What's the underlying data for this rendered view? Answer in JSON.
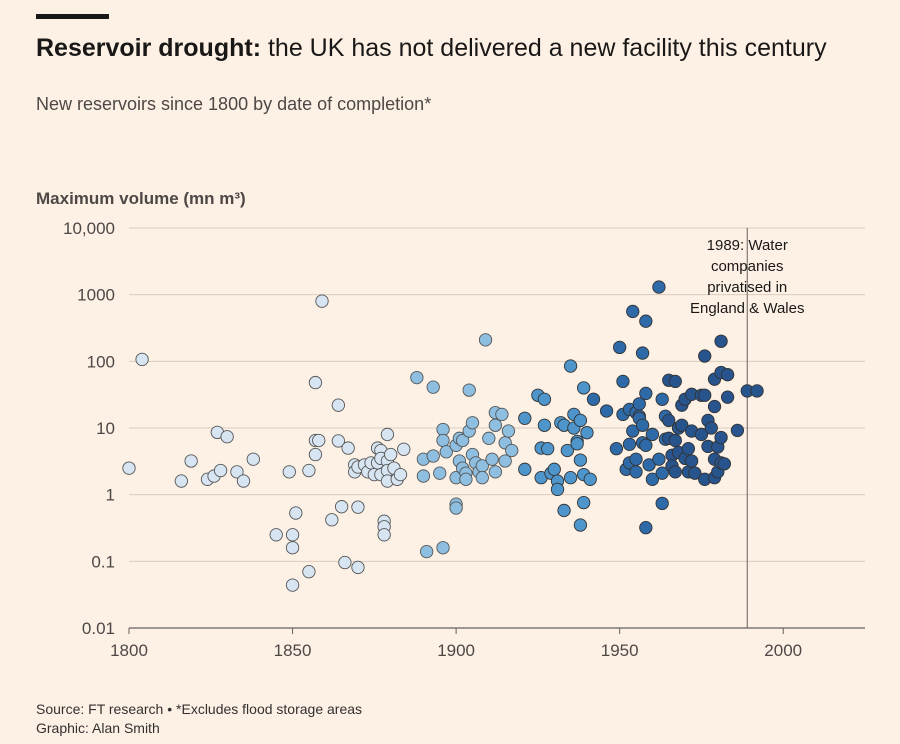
{
  "header": {
    "title_bold": "Reservoir drought:",
    "title_rest": " the UK has not delivered a new facility this century",
    "subtitle": "New reservoirs since 1800 by date of completion*",
    "ylabel": "Maximum volume (mn m³)"
  },
  "footer": {
    "source": "Source: FT research • *Excludes flood storage areas",
    "credit": "Graphic: Alan Smith"
  },
  "annotation": {
    "x": 1989,
    "lines": [
      "1989: Water",
      "companies",
      "privatised in",
      "England & Wales"
    ]
  },
  "colors": {
    "background": "#fdf1e6",
    "gridline": "#d9cbbd",
    "color_scale": [
      "#d7e5f2",
      "#8ebfe0",
      "#4e95cb",
      "#2f6aa8",
      "#27548c"
    ]
  },
  "chart_data": {
    "type": "scatter",
    "xlabel": "",
    "ylabel": "Maximum volume (mn m³)",
    "yscale": "log",
    "xlim": [
      1800,
      2025
    ],
    "ylim": [
      0.01,
      10000
    ],
    "x_ticks": [
      1800,
      1850,
      1900,
      1950,
      2000
    ],
    "y_ticks": [
      {
        "value": 0.01,
        "label": "0.01"
      },
      {
        "value": 0.1,
        "label": "0.1"
      },
      {
        "value": 1,
        "label": "1"
      },
      {
        "value": 10,
        "label": "10"
      },
      {
        "value": 100,
        "label": "100"
      },
      {
        "value": 1000,
        "label": "1000"
      },
      {
        "value": 10000,
        "label": "10,000"
      }
    ],
    "grid": true,
    "series": [
      {
        "points": [
          [
            1800,
            2.5
          ],
          [
            1804,
            107
          ],
          [
            1816,
            1.6
          ],
          [
            1819,
            3.2
          ],
          [
            1824,
            1.7
          ],
          [
            1826,
            1.9
          ],
          [
            1827,
            8.6
          ],
          [
            1828,
            2.3
          ],
          [
            1830,
            7.4
          ],
          [
            1833,
            2.2
          ],
          [
            1835,
            1.6
          ],
          [
            1838,
            3.4
          ],
          [
            1845,
            0.25
          ],
          [
            1849,
            2.2
          ],
          [
            1850,
            0.25
          ],
          [
            1850,
            0.16
          ],
          [
            1850,
            0.044
          ],
          [
            1851,
            0.53
          ],
          [
            1855,
            2.3
          ],
          [
            1855,
            0.07
          ],
          [
            1857,
            48
          ],
          [
            1857,
            4
          ],
          [
            1857,
            6.5
          ],
          [
            1858,
            6.5
          ],
          [
            1859,
            800
          ],
          [
            1862,
            0.42
          ],
          [
            1864,
            22
          ],
          [
            1864,
            6.4
          ],
          [
            1865,
            0.66
          ],
          [
            1866,
            0.096
          ],
          [
            1867,
            5
          ],
          [
            1869,
            2.8
          ],
          [
            1869,
            2.2
          ],
          [
            1870,
            2.6
          ],
          [
            1870,
            0.65
          ],
          [
            1870,
            0.081
          ],
          [
            1872,
            2.8
          ],
          [
            1873,
            2.2
          ],
          [
            1874,
            3
          ],
          [
            1875,
            2
          ],
          [
            1876,
            3
          ],
          [
            1876,
            5
          ],
          [
            1877,
            4.6
          ],
          [
            1877,
            3.5
          ],
          [
            1877,
            2
          ],
          [
            1878,
            0.4
          ],
          [
            1878,
            0.33
          ],
          [
            1878,
            0.25
          ],
          [
            1879,
            3.2
          ],
          [
            1879,
            2.3
          ],
          [
            1879,
            1.6
          ],
          [
            1879,
            8
          ],
          [
            1880,
            4
          ],
          [
            1881,
            2.5
          ],
          [
            1882,
            1.7
          ],
          [
            1883,
            2
          ],
          [
            1884,
            4.8
          ]
        ]
      },
      {
        "points": [
          [
            1888,
            57
          ],
          [
            1890,
            3.4
          ],
          [
            1890,
            1.9
          ],
          [
            1891,
            0.14
          ],
          [
            1893,
            41
          ],
          [
            1893,
            3.8
          ],
          [
            1895,
            2.1
          ],
          [
            1896,
            9.5
          ],
          [
            1896,
            6.5
          ],
          [
            1896,
            0.16
          ],
          [
            1897,
            4.4
          ],
          [
            1900,
            0.72
          ],
          [
            1900,
            0.63
          ],
          [
            1900,
            1.8
          ],
          [
            1900,
            5.5
          ],
          [
            1901,
            7
          ],
          [
            1901,
            3.2
          ],
          [
            1902,
            6.5
          ],
          [
            1902,
            2.5
          ],
          [
            1903,
            2.1
          ],
          [
            1903,
            1.7
          ],
          [
            1904,
            37
          ],
          [
            1904,
            9
          ],
          [
            1905,
            12
          ],
          [
            1905,
            4
          ],
          [
            1906,
            3
          ],
          [
            1907,
            2.2
          ],
          [
            1908,
            2.7
          ],
          [
            1908,
            1.8
          ],
          [
            1909,
            210
          ],
          [
            1910,
            7
          ],
          [
            1911,
            3.4
          ],
          [
            1912,
            17
          ],
          [
            1912,
            11
          ],
          [
            1912,
            2.2
          ],
          [
            1914,
            16
          ],
          [
            1915,
            6
          ],
          [
            1915,
            3.2
          ],
          [
            1916,
            9
          ],
          [
            1917,
            4.6
          ]
        ]
      },
      {
        "points": [
          [
            1921,
            14
          ],
          [
            1921,
            2.4
          ],
          [
            1925,
            31
          ],
          [
            1926,
            5
          ],
          [
            1926,
            1.8
          ],
          [
            1927,
            27
          ],
          [
            1927,
            11
          ],
          [
            1928,
            4.9
          ],
          [
            1929,
            2.1
          ],
          [
            1930,
            2.4
          ],
          [
            1931,
            1.6
          ],
          [
            1931,
            1.2
          ],
          [
            1932,
            12
          ],
          [
            1933,
            0.58
          ],
          [
            1933,
            11
          ],
          [
            1934,
            4.6
          ],
          [
            1935,
            1.8
          ],
          [
            1935,
            85
          ],
          [
            1936,
            10
          ],
          [
            1936,
            16
          ],
          [
            1937,
            6.3
          ],
          [
            1937,
            5.8
          ],
          [
            1938,
            0.35
          ],
          [
            1938,
            3.3
          ],
          [
            1938,
            13
          ],
          [
            1939,
            40
          ],
          [
            1939,
            2
          ],
          [
            1939,
            0.76
          ],
          [
            1940,
            8.5
          ],
          [
            1941,
            1.7
          ]
        ]
      },
      {
        "points": [
          [
            1942,
            27
          ],
          [
            1946,
            18
          ],
          [
            1949,
            4.9
          ],
          [
            1950,
            162
          ],
          [
            1951,
            50
          ],
          [
            1951,
            16
          ],
          [
            1952,
            2.4
          ],
          [
            1953,
            19
          ],
          [
            1953,
            5.7
          ],
          [
            1953,
            3
          ],
          [
            1954,
            560
          ],
          [
            1954,
            9
          ],
          [
            1955,
            17
          ],
          [
            1955,
            3.4
          ],
          [
            1955,
            2.2
          ],
          [
            1956,
            23
          ],
          [
            1956,
            15
          ],
          [
            1956,
            14
          ],
          [
            1957,
            133
          ],
          [
            1957,
            11
          ],
          [
            1957,
            6
          ],
          [
            1958,
            400
          ],
          [
            1958,
            0.32
          ],
          [
            1958,
            33
          ],
          [
            1958,
            5.5
          ],
          [
            1959,
            2.8
          ],
          [
            1960,
            8
          ],
          [
            1960,
            1.7
          ],
          [
            1962,
            1300
          ],
          [
            1962,
            3.4
          ],
          [
            1963,
            0.74
          ],
          [
            1963,
            2.1
          ],
          [
            1963,
            27
          ],
          [
            1964,
            15
          ],
          [
            1964,
            6.8
          ]
        ]
      },
      {
        "points": [
          [
            1965,
            13
          ],
          [
            1965,
            7
          ],
          [
            1965,
            52
          ],
          [
            1966,
            3.9
          ],
          [
            1966,
            2.7
          ],
          [
            1967,
            50
          ],
          [
            1967,
            6.5
          ],
          [
            1967,
            2.2
          ],
          [
            1968,
            10
          ],
          [
            1968,
            4.3
          ],
          [
            1969,
            22
          ],
          [
            1969,
            11
          ],
          [
            1970,
            27
          ],
          [
            1970,
            3.5
          ],
          [
            1971,
            4.9
          ],
          [
            1971,
            2.2
          ],
          [
            1972,
            32
          ],
          [
            1972,
            9
          ],
          [
            1972,
            3.2
          ],
          [
            1973,
            2.1
          ],
          [
            1975,
            31
          ],
          [
            1975,
            8
          ],
          [
            1976,
            120
          ],
          [
            1976,
            31
          ],
          [
            1976,
            1.7
          ],
          [
            1977,
            13
          ],
          [
            1977,
            5.3
          ],
          [
            1978,
            10
          ],
          [
            1979,
            54
          ],
          [
            1979,
            21
          ],
          [
            1979,
            3.4
          ],
          [
            1979,
            1.8
          ],
          [
            1980,
            5.2
          ],
          [
            1980,
            2.2
          ],
          [
            1981,
            200
          ],
          [
            1981,
            68
          ],
          [
            1981,
            7.2
          ],
          [
            1981,
            3
          ],
          [
            1982,
            2.9
          ],
          [
            1983,
            29
          ],
          [
            1983,
            63
          ],
          [
            1986,
            9.2
          ],
          [
            1989,
            36
          ],
          [
            1992,
            36
          ]
        ]
      }
    ]
  }
}
